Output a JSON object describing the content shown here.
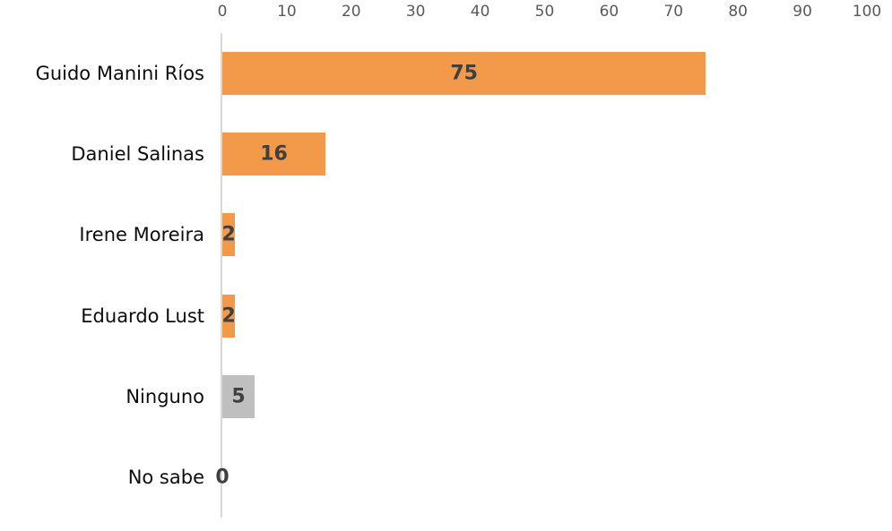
{
  "chart_data": {
    "type": "bar",
    "orientation": "horizontal",
    "title": "",
    "xlabel": "",
    "ylabel": "",
    "categories": [
      "Guido Manini Ríos",
      "Daniel Salinas",
      "Irene Moreira",
      "Eduardo Lust",
      "Ninguno",
      "No sabe"
    ],
    "values": [
      75,
      16,
      2,
      2,
      5,
      0
    ],
    "bar_colors": [
      "#f2994a",
      "#f2994a",
      "#f2994a",
      "#f2994a",
      "#bfbfbf",
      "#f2994a"
    ],
    "x_ticks": [
      0,
      10,
      20,
      30,
      40,
      50,
      60,
      70,
      80,
      90,
      100
    ],
    "xlim": [
      0,
      100
    ],
    "axis_position": "top",
    "grid": false,
    "legend": false,
    "colors": {
      "bar_orange": "#f2994a",
      "bar_gray": "#bfbfbf",
      "value_label": "#404040",
      "tick_label": "#595959",
      "category_label": "#0d0d0d",
      "axis_line": "#d9d9d9",
      "background": "#ffffff"
    }
  }
}
